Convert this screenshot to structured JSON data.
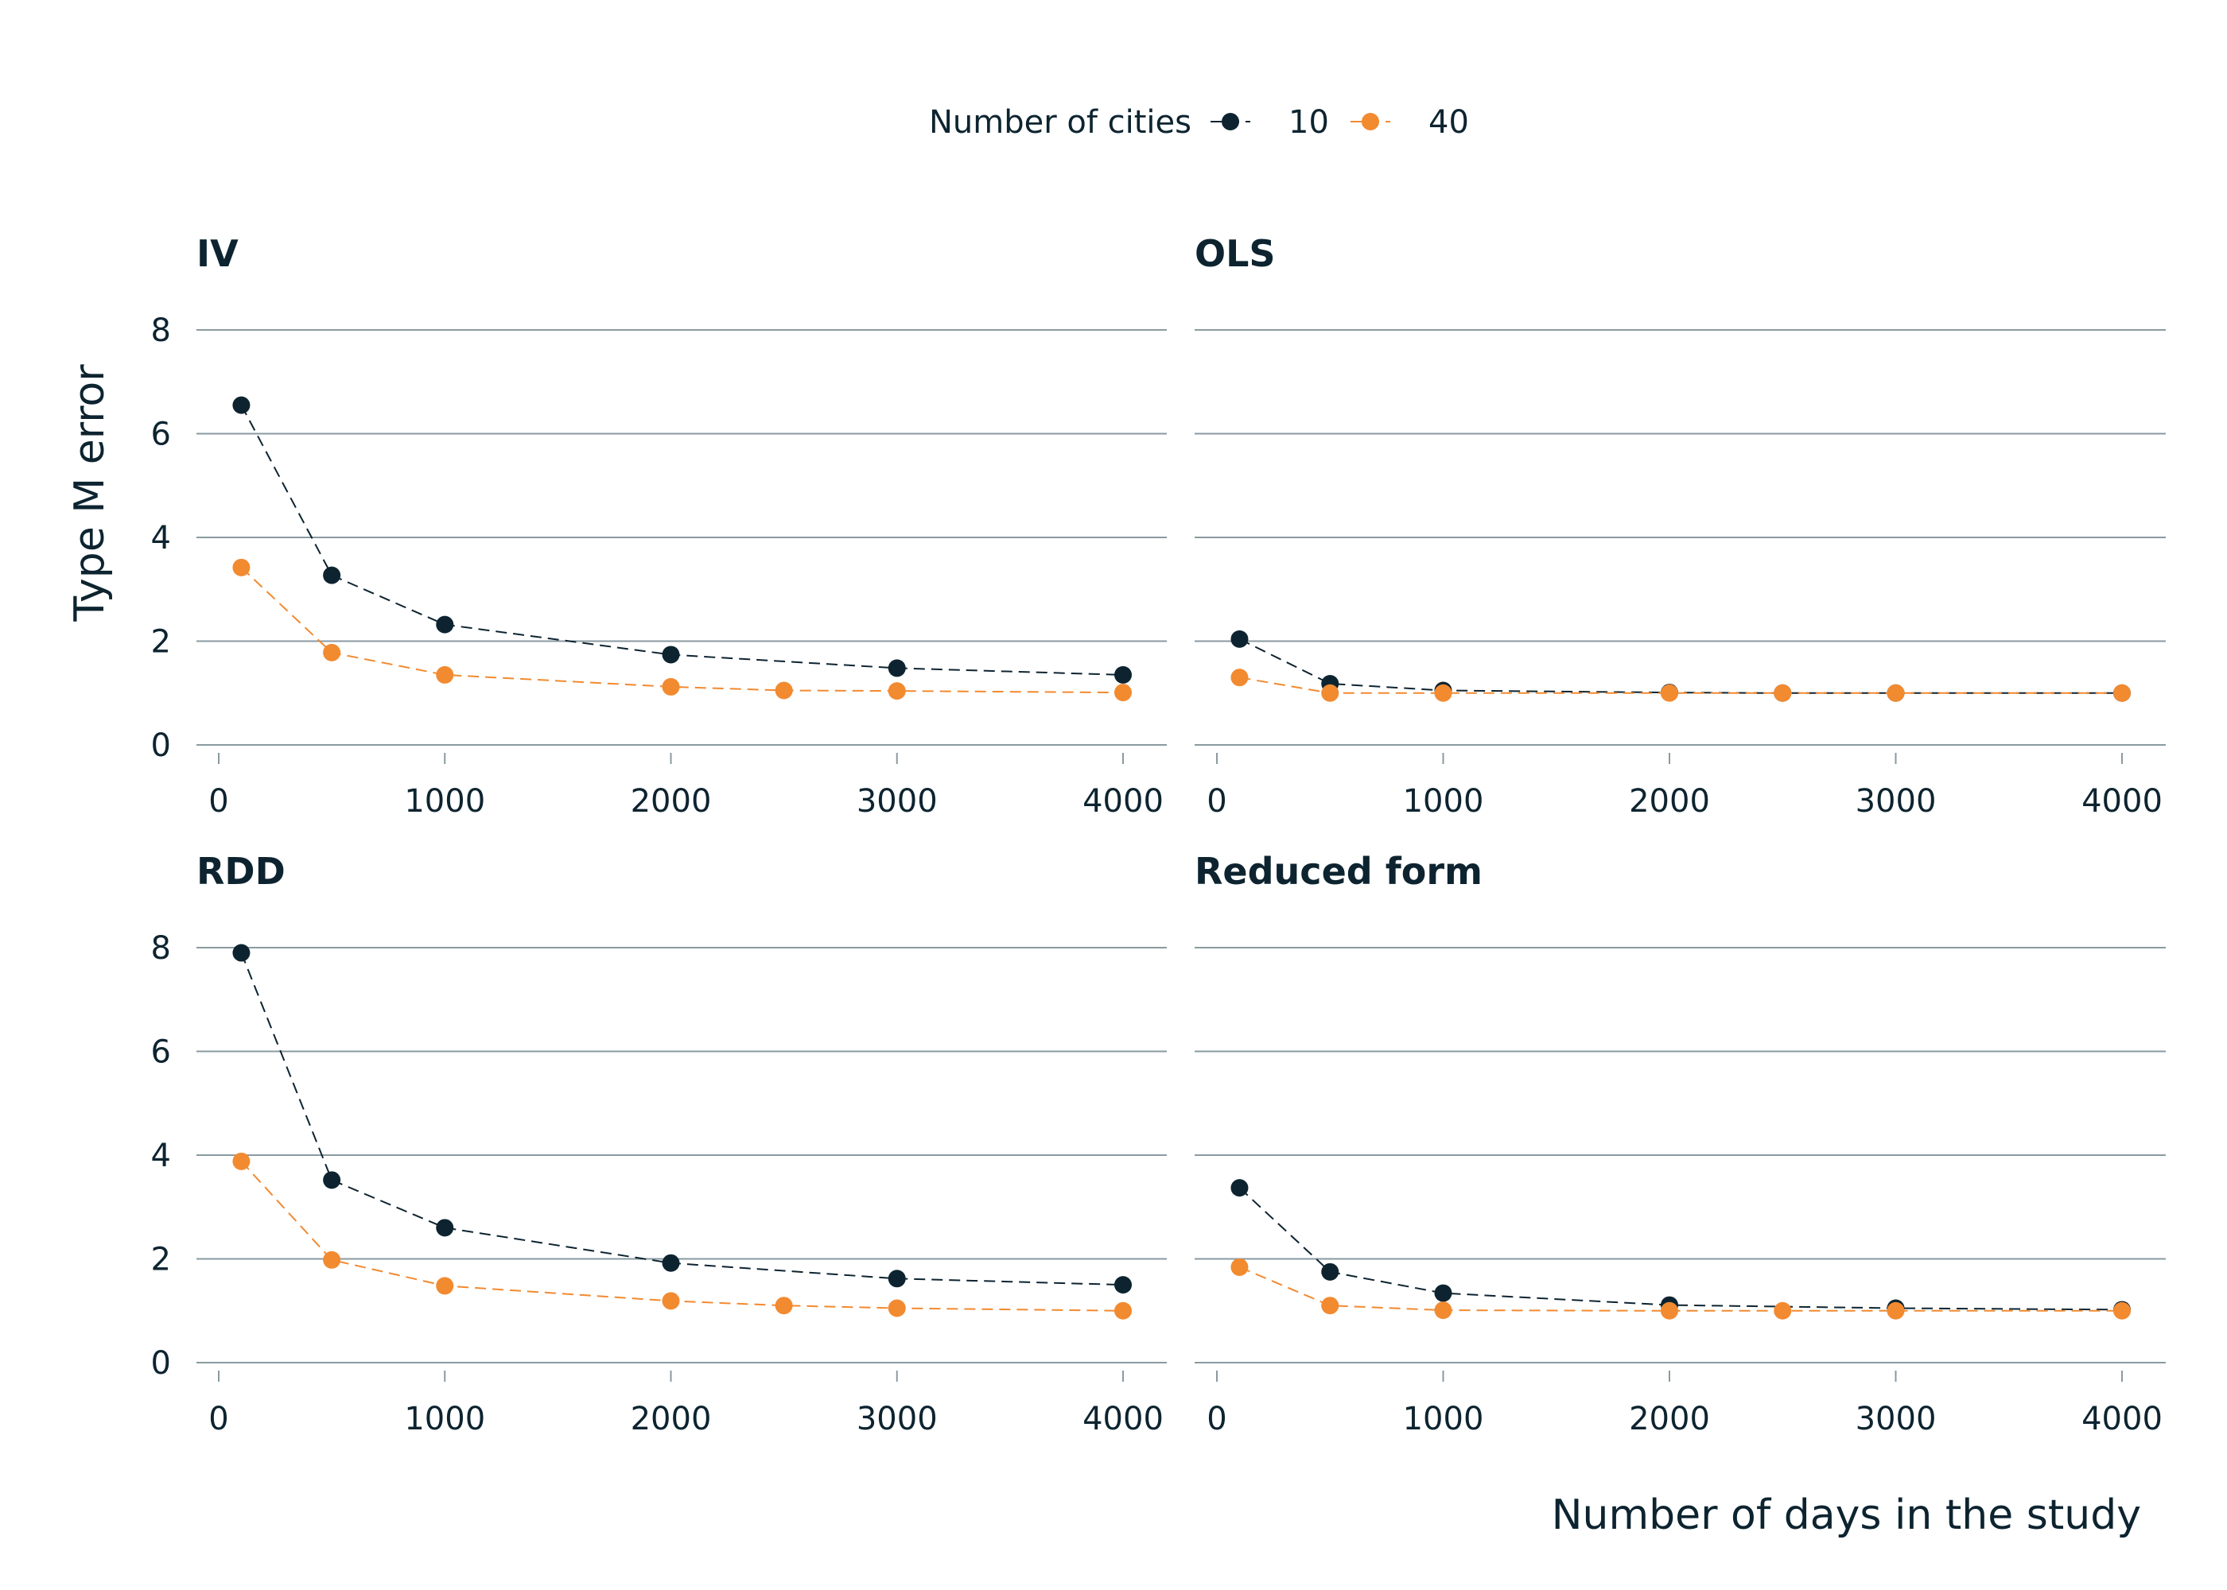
{
  "chart_data": {
    "type": "line",
    "layout": "facet-grid-2x2",
    "legend": {
      "title": "Number of cities",
      "position": "top-center",
      "entries": [
        {
          "label": "10",
          "color": "#0d2430"
        },
        {
          "label": "40",
          "color": "#f28a30"
        }
      ]
    },
    "xlabel": "Number of days in the study",
    "ylabel": "Type M error",
    "xlim": [
      0,
      4000
    ],
    "ylim": [
      0,
      8
    ],
    "x_ticks": [
      "0",
      "1000",
      "2000",
      "3000",
      "4000"
    ],
    "y_ticks": [
      "0",
      "2",
      "4",
      "6",
      "8"
    ],
    "grid": "horizontal",
    "panels": [
      {
        "title": "IV",
        "series": [
          {
            "name": "10",
            "color": "#0d2430",
            "x": [
              100,
              500,
              1000,
              2000,
              3000,
              4000
            ],
            "y": [
              6.55,
              3.27,
              2.32,
              1.74,
              1.48,
              1.35
            ]
          },
          {
            "name": "40",
            "color": "#f28a30",
            "x": [
              100,
              500,
              1000,
              2000,
              2500,
              3000,
              4000
            ],
            "y": [
              3.42,
              1.78,
              1.35,
              1.12,
              1.05,
              1.04,
              1.01
            ]
          }
        ]
      },
      {
        "title": "OLS",
        "series": [
          {
            "name": "10",
            "color": "#0d2430",
            "x": [
              100,
              500,
              1000,
              2000,
              2500,
              3000,
              4000
            ],
            "y": [
              2.04,
              1.18,
              1.05,
              1.01,
              1.0,
              1.0,
              1.0
            ]
          },
          {
            "name": "40",
            "color": "#f28a30",
            "x": [
              100,
              500,
              1000,
              2000,
              2500,
              3000,
              4000
            ],
            "y": [
              1.3,
              1.0,
              1.0,
              1.0,
              1.0,
              1.0,
              1.0
            ]
          }
        ]
      },
      {
        "title": "RDD",
        "series": [
          {
            "name": "10",
            "color": "#0d2430",
            "x": [
              100,
              500,
              1000,
              2000,
              3000,
              4000
            ],
            "y": [
              7.9,
              3.52,
              2.6,
              1.92,
              1.62,
              1.5
            ]
          },
          {
            "name": "40",
            "color": "#f28a30",
            "x": [
              100,
              500,
              1000,
              2000,
              2500,
              3000,
              4000
            ],
            "y": [
              3.88,
              1.98,
              1.48,
              1.19,
              1.1,
              1.05,
              1.0
            ]
          }
        ]
      },
      {
        "title": "Reduced form",
        "series": [
          {
            "name": "10",
            "color": "#0d2430",
            "x": [
              100,
              500,
              1000,
              2000,
              3000,
              4000
            ],
            "y": [
              3.37,
              1.75,
              1.34,
              1.11,
              1.05,
              1.02
            ]
          },
          {
            "name": "40",
            "color": "#f28a30",
            "x": [
              100,
              500,
              1000,
              2000,
              2500,
              3000,
              4000
            ],
            "y": [
              1.84,
              1.1,
              1.01,
              1.0,
              1.0,
              1.0,
              1.0
            ]
          }
        ]
      }
    ]
  }
}
